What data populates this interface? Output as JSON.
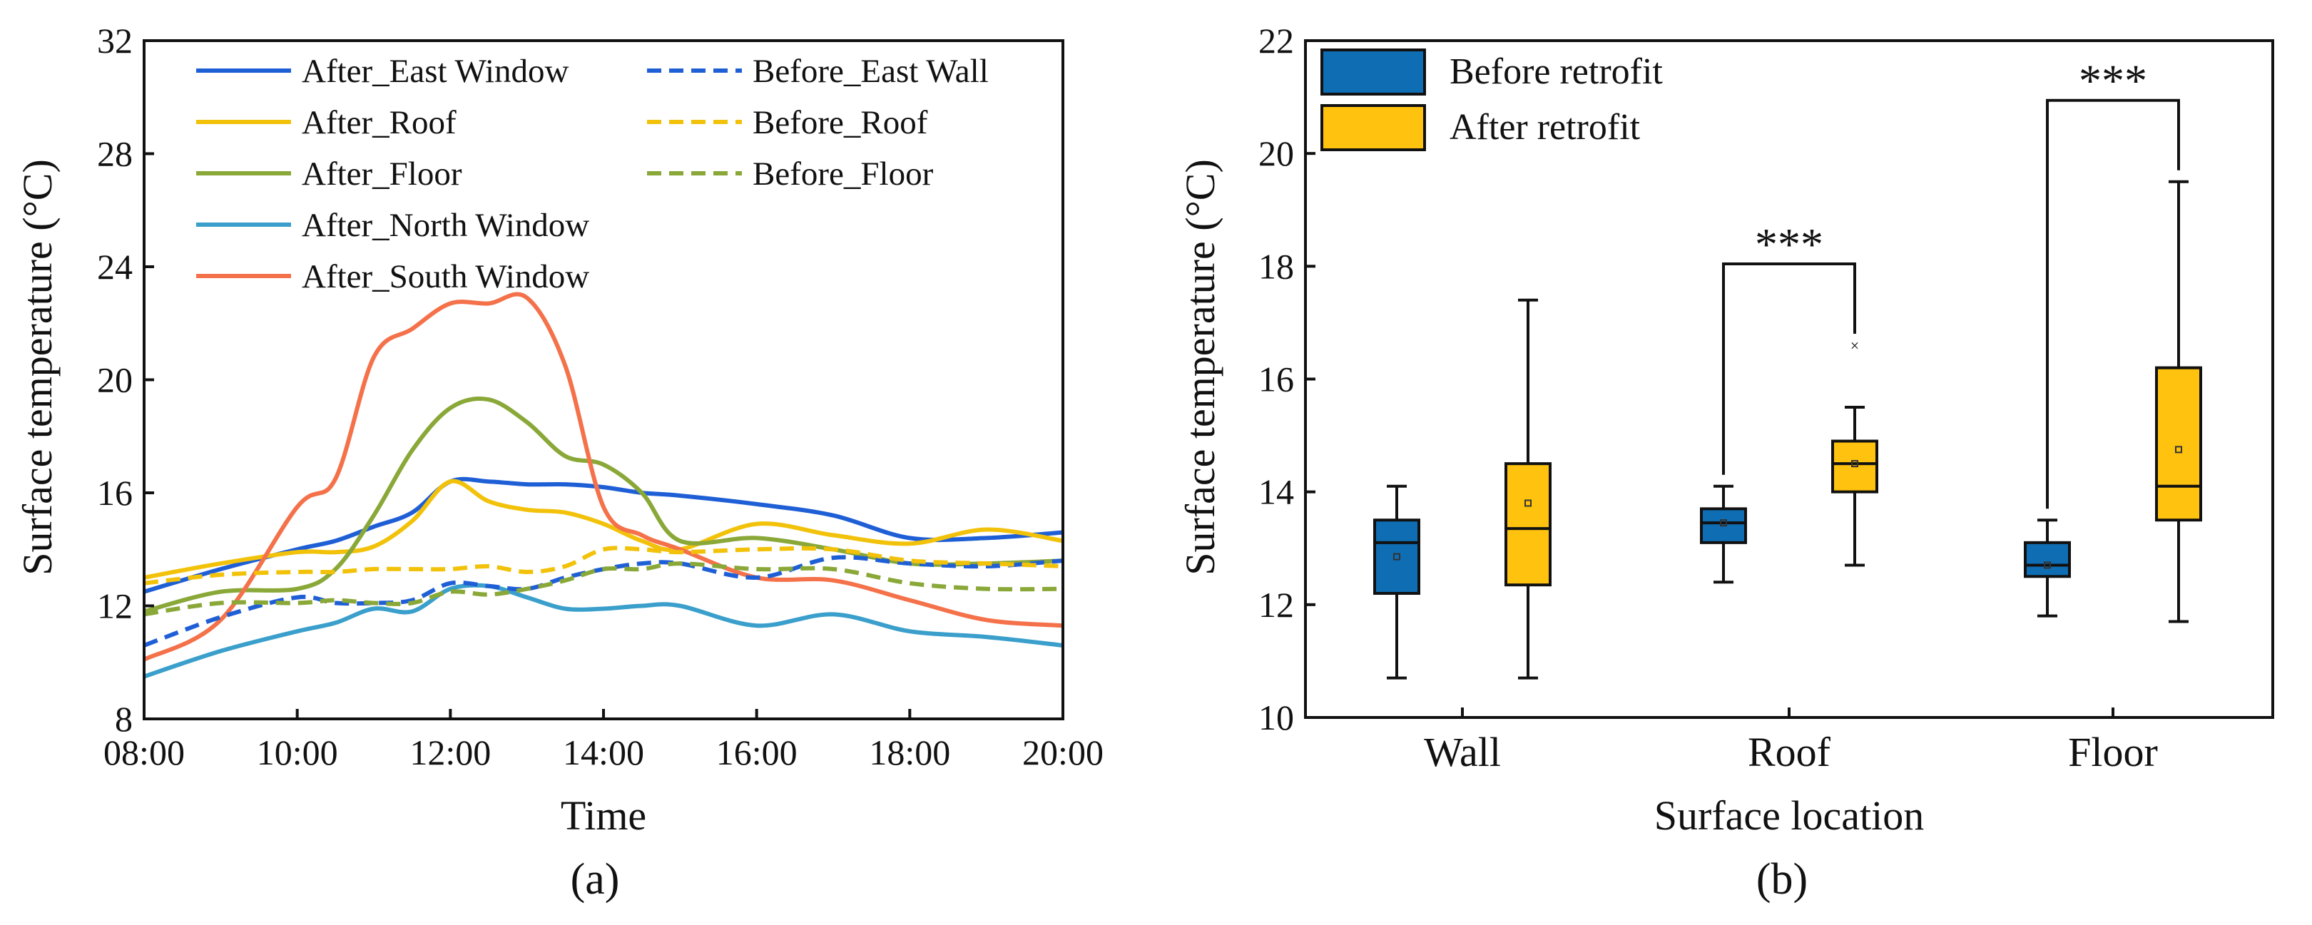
{
  "chart_data": [
    {
      "type": "line",
      "panel_label": "(a)",
      "xlabel": "Time",
      "ylabel": "Surface temperature (°C)",
      "x_ticks": [
        "08:00",
        "10:00",
        "12:00",
        "14:00",
        "16:00",
        "18:00",
        "20:00"
      ],
      "x_range_hours": [
        8,
        20
      ],
      "ylim": [
        8,
        32
      ],
      "y_ticks": [
        8,
        12,
        16,
        20,
        24,
        28,
        32
      ],
      "legend_position": "top-left",
      "x_hours": [
        8,
        9,
        10,
        10.5,
        11,
        11.5,
        12,
        12.5,
        13,
        13.5,
        14,
        14.5,
        15,
        16,
        17,
        18,
        19,
        20
      ],
      "series": [
        {
          "name": "After_East Window",
          "color": "#1f5fd6",
          "dash": false,
          "values": [
            12.5,
            13.3,
            14.0,
            14.3,
            14.8,
            15.3,
            16.4,
            16.4,
            16.3,
            16.3,
            16.2,
            16.0,
            15.9,
            15.6,
            15.2,
            14.4,
            14.4,
            14.6
          ]
        },
        {
          "name": "After_Roof",
          "color": "#f2c20a",
          "dash": false,
          "values": [
            13.0,
            13.5,
            13.9,
            13.9,
            14.1,
            15.0,
            16.4,
            15.7,
            15.4,
            15.3,
            14.9,
            14.3,
            14.0,
            14.9,
            14.5,
            14.2,
            14.7,
            14.3
          ]
        },
        {
          "name": "After_Floor",
          "color": "#8aa838",
          "dash": false,
          "values": [
            11.8,
            12.5,
            12.6,
            13.3,
            15.2,
            17.5,
            19.0,
            19.3,
            18.5,
            17.3,
            17.0,
            16.0,
            14.3,
            14.4,
            14.0,
            13.5,
            13.5,
            13.6
          ]
        },
        {
          "name": "After_North Window",
          "color": "#3a9fcb",
          "dash": false,
          "values": [
            9.5,
            10.4,
            11.1,
            11.4,
            11.9,
            11.8,
            12.6,
            12.7,
            12.3,
            11.9,
            11.9,
            12.0,
            12.0,
            11.3,
            11.7,
            11.1,
            10.9,
            10.6
          ]
        },
        {
          "name": "After_South Window",
          "color": "#f4714a",
          "dash": false,
          "values": [
            10.1,
            11.5,
            15.5,
            16.5,
            20.8,
            21.8,
            22.7,
            22.7,
            22.9,
            20.5,
            15.5,
            14.5,
            14.0,
            13.0,
            12.9,
            12.2,
            11.5,
            11.3
          ]
        },
        {
          "name": "Before_East Wall",
          "color": "#1f5fd6",
          "dash": true,
          "values": [
            10.6,
            11.6,
            12.3,
            12.1,
            12.1,
            12.2,
            12.8,
            12.7,
            12.6,
            13.0,
            13.3,
            13.5,
            13.5,
            13.0,
            13.7,
            13.5,
            13.4,
            13.6
          ]
        },
        {
          "name": "Before_Roof",
          "color": "#f2c20a",
          "dash": true,
          "values": [
            12.8,
            13.1,
            13.2,
            13.2,
            13.3,
            13.3,
            13.3,
            13.4,
            13.2,
            13.4,
            14.0,
            14.0,
            13.9,
            14.0,
            14.0,
            13.6,
            13.5,
            13.4
          ]
        },
        {
          "name": "Before_Floor",
          "color": "#8aa838",
          "dash": true,
          "values": [
            11.7,
            12.1,
            12.1,
            12.2,
            12.1,
            12.1,
            12.5,
            12.4,
            12.6,
            12.9,
            13.3,
            13.3,
            13.5,
            13.3,
            13.3,
            12.8,
            12.6,
            12.6
          ]
        }
      ]
    },
    {
      "type": "box",
      "panel_label": "(b)",
      "xlabel": "Surface location",
      "ylabel": "Surface temperature (°C)",
      "categories": [
        "Wall",
        "Roof",
        "Floor"
      ],
      "ylim": [
        10,
        22
      ],
      "y_ticks": [
        10,
        12,
        14,
        16,
        18,
        20,
        22
      ],
      "legend_position": "top-left",
      "significance_label": "***",
      "significance_pairs": [
        "Roof",
        "Floor"
      ],
      "series": [
        {
          "name": "Before retrofit",
          "color": "#0f6db3",
          "boxes": [
            {
              "min": 10.7,
              "q1": 12.2,
              "median": 13.1,
              "q3": 13.5,
              "max": 14.1,
              "mean": 12.85,
              "outliers": []
            },
            {
              "min": 12.4,
              "q1": 13.1,
              "median": 13.45,
              "q3": 13.7,
              "max": 14.1,
              "mean": 13.45,
              "outliers": []
            },
            {
              "min": 11.8,
              "q1": 12.5,
              "median": 12.7,
              "q3": 13.1,
              "max": 13.5,
              "mean": 12.7,
              "outliers": []
            }
          ]
        },
        {
          "name": "After retrofit",
          "color": "#ffc20e",
          "boxes": [
            {
              "min": 10.7,
              "q1": 12.35,
              "median": 13.35,
              "q3": 14.5,
              "max": 17.4,
              "mean": 13.8,
              "outliers": []
            },
            {
              "min": 12.7,
              "q1": 14.0,
              "median": 14.5,
              "q3": 14.9,
              "max": 15.5,
              "mean": 14.5,
              "outliers": [
                16.6
              ]
            },
            {
              "min": 11.7,
              "q1": 13.5,
              "median": 14.1,
              "q3": 16.2,
              "max": 19.5,
              "mean": 14.75,
              "outliers": []
            }
          ]
        }
      ]
    }
  ]
}
